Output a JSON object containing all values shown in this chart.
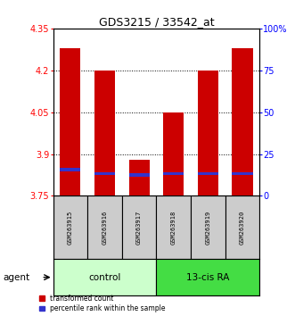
{
  "title": "GDS3215 / 33542_at",
  "samples": [
    "GSM263915",
    "GSM263916",
    "GSM263917",
    "GSM263918",
    "GSM263919",
    "GSM263920"
  ],
  "bar_tops": [
    4.28,
    4.2,
    3.88,
    4.05,
    4.2,
    4.28
  ],
  "bar_bottom": 3.75,
  "percentile_values": [
    3.845,
    3.83,
    3.825,
    3.83,
    3.83,
    3.83
  ],
  "ylim_left": [
    3.75,
    4.35
  ],
  "yticks_left": [
    3.75,
    3.9,
    4.05,
    4.2,
    4.35
  ],
  "ytick_labels_left": [
    "3.75",
    "3.9",
    "4.05",
    "4.2",
    "4.35"
  ],
  "yticks_right": [
    0,
    25,
    50,
    75,
    100
  ],
  "ytick_labels_right": [
    "0",
    "25",
    "50",
    "75",
    "100%"
  ],
  "bar_color": "#cc0000",
  "percentile_color": "#3333cc",
  "control_color": "#ccffcc",
  "treatment_color": "#44dd44",
  "sample_box_color": "#cccccc",
  "agent_label": "agent",
  "legend_items": [
    "transformed count",
    "percentile rank within the sample"
  ],
  "legend_colors": [
    "#cc0000",
    "#3333cc"
  ],
  "group_labels": [
    "control",
    "13-cis RA"
  ],
  "n_control": 3,
  "n_treatment": 3
}
